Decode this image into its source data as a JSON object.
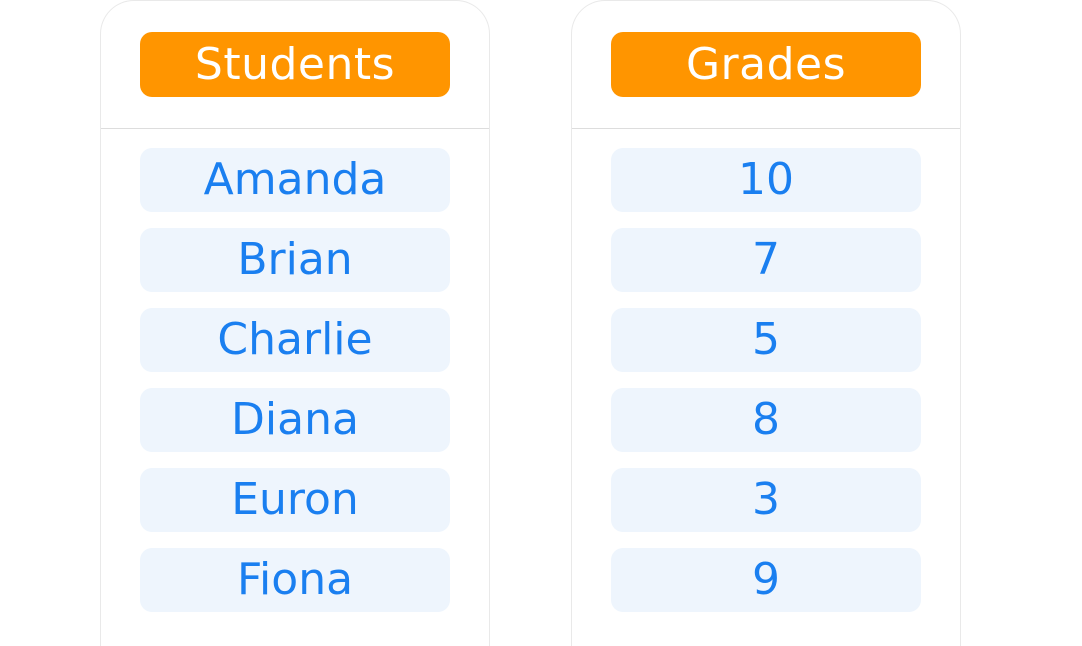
{
  "students": {
    "header": "Students",
    "items": [
      "Amanda",
      "Brian",
      "Charlie",
      "Diana",
      "Euron",
      "Fiona"
    ]
  },
  "grades": {
    "header": "Grades",
    "items": [
      "10",
      "7",
      "5",
      "8",
      "3",
      "9"
    ]
  },
  "colors": {
    "header_bg": "#ff9500",
    "header_text": "#ffffff",
    "row_bg": "#eef5fd",
    "row_text": "#1a7ff0"
  }
}
